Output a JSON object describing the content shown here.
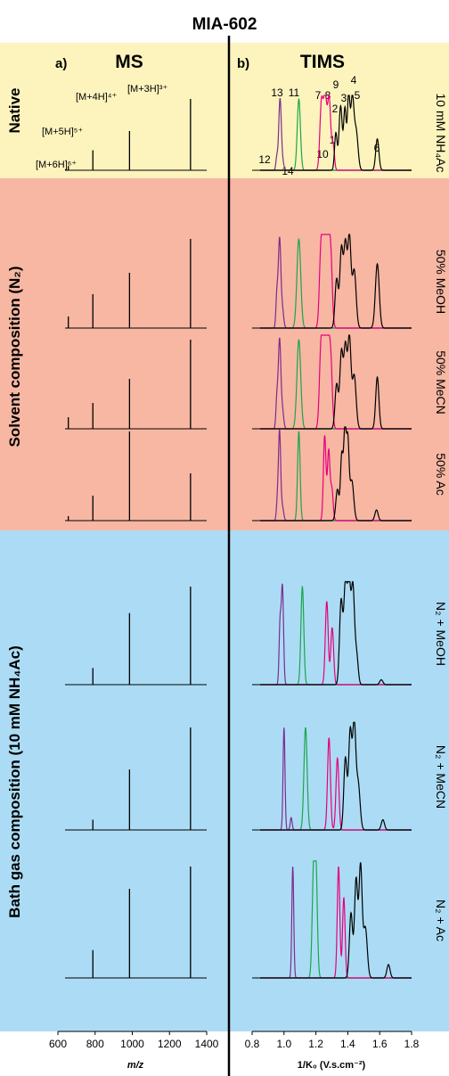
{
  "figure": {
    "title": "MIA-602",
    "panel_a_letter": "a)",
    "panel_a_title": "MS",
    "panel_b_letter": "b)",
    "panel_b_title": "TIMS",
    "group_native": "Native",
    "group_solvent": "Solvent composition (N₂)",
    "group_bath": "Bath gas composition (10 mM NH₄Ac)",
    "background_colors": {
      "native": "#fcf3bd",
      "solvent": "#f7b7a3",
      "bath": "#acdcf5"
    },
    "series_colors": {
      "6+": "#7b2d8e",
      "5+": "#1aa64b",
      "4+": "#e6007e",
      "3+": "#000000"
    },
    "ion_labels": [
      "[M+6H]⁶⁺",
      "[M+5H]⁵⁺",
      "[M+4H]⁴⁺",
      "[M+3H]³⁺"
    ],
    "conformer_labels": [
      "1",
      "2",
      "3",
      "4",
      "5",
      "6",
      "7",
      "8",
      "9",
      "10",
      "11",
      "12",
      "13",
      "14"
    ]
  },
  "chart_data": [
    {
      "type": "bar",
      "panel": "MS",
      "xlabel": "m/z",
      "ylabel": "",
      "xlim": [
        600,
        1400
      ],
      "xticks": [
        600,
        800,
        1000,
        1200,
        1400
      ],
      "ylim": [
        0,
        1
      ],
      "peaks_mz": [
        656,
        788,
        985,
        1313
      ],
      "rows": [
        {
          "condition": "10 mM NH₄Ac",
          "intensities": [
            0.06,
            0.28,
            0.55,
            1.0
          ]
        },
        {
          "condition": "50% MeOH",
          "intensities": [
            0.13,
            0.38,
            0.62,
            1.0
          ]
        },
        {
          "condition": "50% MeCN",
          "intensities": [
            0.13,
            0.29,
            0.56,
            1.0
          ]
        },
        {
          "condition": "50% Ac",
          "intensities": [
            0.05,
            0.28,
            1.0,
            0.53
          ]
        },
        {
          "condition": "N₂ + MeOH",
          "intensities": [
            0.0,
            0.17,
            0.73,
            1.0
          ]
        },
        {
          "condition": "N₂ + MeCN",
          "intensities": [
            0.0,
            0.1,
            0.59,
            1.0
          ]
        },
        {
          "condition": "N₂ + Ac",
          "intensities": [
            0.0,
            0.25,
            0.8,
            1.0
          ]
        }
      ]
    },
    {
      "type": "line",
      "panel": "TIMS",
      "xlabel": "1/K₀ (V.s.cm⁻²)",
      "ylabel": "",
      "xlim": [
        0.8,
        1.8
      ],
      "xticks": [
        0.8,
        1.0,
        1.2,
        1.4,
        1.6,
        1.8
      ],
      "ylim": [
        0,
        1
      ],
      "rows": [
        {
          "condition": "10 mM NH₄Ac",
          "series": [
            {
              "name": "6+",
              "peaks": [
                [
                  0.955,
                  0.18,
                  0.006
                ],
                [
                  0.975,
                  1.0,
                  0.008
                ],
                [
                  0.992,
                  0.1,
                  0.008
                ]
              ]
            },
            {
              "name": "5+",
              "peaks": [
                [
                  1.093,
                  1.0,
                  0.01
                ]
              ]
            },
            {
              "name": "4+",
              "peaks": [
                [
                  1.235,
                  0.95,
                  0.01
                ],
                [
                  1.258,
                  1.0,
                  0.01
                ],
                [
                  1.283,
                  1.0,
                  0.01
                ],
                [
                  1.308,
                  0.35,
                  0.008
                ]
              ]
            },
            {
              "name": "3+",
              "peaks": [
                [
                  1.325,
                  0.52,
                  0.008
                ],
                [
                  1.355,
                  0.9,
                  0.01
                ],
                [
                  1.382,
                  0.85,
                  0.008
                ],
                [
                  1.405,
                  1.02,
                  0.008
                ],
                [
                  1.428,
                  0.98,
                  0.01
                ],
                [
                  1.452,
                  0.55,
                  0.012
                ],
                [
                  1.585,
                  0.44,
                  0.01
                ]
              ]
            }
          ]
        },
        {
          "condition": "50% MeOH",
          "series": [
            {
              "name": "6+",
              "peaks": [
                [
                  0.955,
                  0.35,
                  0.006
                ],
                [
                  0.972,
                  1.0,
                  0.008
                ],
                [
                  0.99,
                  0.2,
                  0.008
                ]
              ]
            },
            {
              "name": "5+",
              "peaks": [
                [
                  1.093,
                  1.0,
                  0.012
                ]
              ]
            },
            {
              "name": "4+",
              "peaks": [
                [
                  1.232,
                  0.88,
                  0.01
                ],
                [
                  1.252,
                  0.97,
                  0.01
                ],
                [
                  1.272,
                  0.98,
                  0.01
                ],
                [
                  1.292,
                  0.85,
                  0.01
                ]
              ]
            },
            {
              "name": "3+",
              "peaks": [
                [
                  1.33,
                  0.55,
                  0.01
                ],
                [
                  1.36,
                  0.88,
                  0.01
                ],
                [
                  1.385,
                  0.92,
                  0.01
                ],
                [
                  1.41,
                  1.0,
                  0.01
                ],
                [
                  1.44,
                  0.65,
                  0.012
                ],
                [
                  1.585,
                  0.72,
                  0.012
                ]
              ]
            }
          ]
        },
        {
          "condition": "50% MeCN",
          "series": [
            {
              "name": "6+",
              "peaks": [
                [
                  0.955,
                  0.32,
                  0.006
                ],
                [
                  0.972,
                  1.0,
                  0.008
                ],
                [
                  0.99,
                  0.2,
                  0.008
                ]
              ]
            },
            {
              "name": "5+",
              "peaks": [
                [
                  1.093,
                  1.0,
                  0.012
                ]
              ]
            },
            {
              "name": "4+",
              "peaks": [
                [
                  1.232,
                  0.9,
                  0.01
                ],
                [
                  1.252,
                  0.98,
                  0.01
                ],
                [
                  1.272,
                  0.98,
                  0.01
                ],
                [
                  1.292,
                  0.8,
                  0.01
                ]
              ]
            },
            {
              "name": "3+",
              "peaks": [
                [
                  1.33,
                  0.5,
                  0.01
                ],
                [
                  1.36,
                  0.85,
                  0.01
                ],
                [
                  1.385,
                  0.9,
                  0.01
                ],
                [
                  1.41,
                  1.0,
                  0.01
                ],
                [
                  1.44,
                  0.6,
                  0.012
                ],
                [
                  1.585,
                  0.58,
                  0.01
                ]
              ]
            }
          ]
        },
        {
          "condition": "50% Ac",
          "series": [
            {
              "name": "6+",
              "peaks": [
                [
                  0.958,
                  0.2,
                  0.006
                ],
                [
                  0.972,
                  1.0,
                  0.007
                ],
                [
                  0.99,
                  0.15,
                  0.008
                ]
              ]
            },
            {
              "name": "5+",
              "peaks": [
                [
                  1.093,
                  1.0,
                  0.008
                ]
              ]
            },
            {
              "name": "4+",
              "peaks": [
                [
                  1.255,
                  0.95,
                  0.008
                ],
                [
                  1.28,
                  0.78,
                  0.008
                ],
                [
                  1.3,
                  0.35,
                  0.008
                ]
              ]
            },
            {
              "name": "3+",
              "peaks": [
                [
                  1.335,
                  0.35,
                  0.01
                ],
                [
                  1.362,
                  0.72,
                  0.008
                ],
                [
                  1.382,
                  1.0,
                  0.008
                ],
                [
                  1.4,
                  0.85,
                  0.008
                ],
                [
                  1.425,
                  0.45,
                  0.012
                ],
                [
                  1.58,
                  0.12,
                  0.01
                ]
              ]
            }
          ]
        },
        {
          "condition": "N₂ + MeOH",
          "series": [
            {
              "name": "6+",
              "peaks": [
                [
                  0.975,
                  0.6,
                  0.006
                ],
                [
                  0.99,
                  1.0,
                  0.007
                ]
              ]
            },
            {
              "name": "5+",
              "peaks": [
                [
                  1.115,
                  1.0,
                  0.009
                ]
              ]
            },
            {
              "name": "4+",
              "peaks": [
                [
                  1.268,
                  0.85,
                  0.009
                ],
                [
                  1.302,
                  0.58,
                  0.009
                ]
              ]
            },
            {
              "name": "3+",
              "peaks": [
                [
                  1.358,
                  0.85,
                  0.01
                ],
                [
                  1.385,
                  1.0,
                  0.01
                ],
                [
                  1.408,
                  1.0,
                  0.01
                ],
                [
                  1.432,
                  0.97,
                  0.01
                ],
                [
                  1.455,
                  0.3,
                  0.01
                ],
                [
                  1.61,
                  0.05,
                  0.01
                ]
              ]
            }
          ]
        },
        {
          "condition": "N₂ + MeCN",
          "series": [
            {
              "name": "6+",
              "peaks": [
                [
                  1.0,
                  1.0,
                  0.006
                ],
                [
                  1.045,
                  0.12,
                  0.006
                ]
              ]
            },
            {
              "name": "5+",
              "peaks": [
                [
                  1.135,
                  1.0,
                  0.01
                ]
              ]
            },
            {
              "name": "4+",
              "peaks": [
                [
                  1.282,
                  0.9,
                  0.009
                ],
                [
                  1.335,
                  0.7,
                  0.009
                ]
              ]
            },
            {
              "name": "3+",
              "peaks": [
                [
                  1.385,
                  0.7,
                  0.01
                ],
                [
                  1.415,
                  0.95,
                  0.01
                ],
                [
                  1.44,
                  1.0,
                  0.01
                ],
                [
                  1.465,
                  0.45,
                  0.012
                ],
                [
                  1.62,
                  0.1,
                  0.01
                ]
              ]
            }
          ]
        },
        {
          "condition": "N₂ + Ac",
          "series": [
            {
              "name": "6+",
              "peaks": [
                [
                  1.055,
                  1.0,
                  0.006
                ]
              ]
            },
            {
              "name": "5+",
              "peaks": [
                [
                  1.185,
                  0.85,
                  0.009
                ],
                [
                  1.2,
                  0.95,
                  0.009
                ]
              ]
            },
            {
              "name": "4+",
              "peaks": [
                [
                  1.342,
                  1.0,
                  0.008
                ],
                [
                  1.375,
                  0.72,
                  0.008
                ]
              ]
            },
            {
              "name": "3+",
              "peaks": [
                [
                  1.42,
                  0.58,
                  0.01
                ],
                [
                  1.452,
                  0.88,
                  0.01
                ],
                [
                  1.48,
                  1.0,
                  0.01
                ],
                [
                  1.51,
                  0.45,
                  0.012
                ],
                [
                  1.655,
                  0.12,
                  0.01
                ]
              ]
            }
          ]
        }
      ]
    }
  ]
}
